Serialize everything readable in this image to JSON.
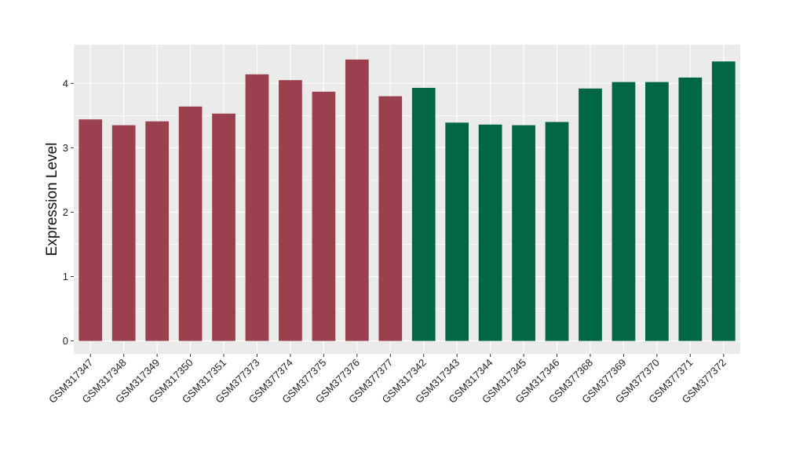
{
  "chart_data": {
    "type": "bar",
    "title": "",
    "xlabel": "",
    "ylabel": "Expression Level",
    "ylim": [
      -0.2,
      4.6
    ],
    "yticks": [
      0,
      1,
      2,
      3,
      4
    ],
    "grid": true,
    "legend": "none",
    "categories": [
      "GSM317347",
      "GSM317348",
      "GSM317349",
      "GSM317350",
      "GSM317351",
      "GSM377373",
      "GSM377374",
      "GSM377375",
      "GSM377376",
      "GSM377377",
      "GSM317342",
      "GSM317343",
      "GSM317344",
      "GSM317345",
      "GSM317346",
      "GSM377368",
      "GSM377369",
      "GSM377370",
      "GSM377371",
      "GSM377372"
    ],
    "values": [
      3.44,
      3.35,
      3.41,
      3.64,
      3.53,
      4.14,
      4.05,
      3.87,
      4.37,
      3.8,
      3.93,
      3.39,
      3.36,
      3.35,
      3.4,
      3.92,
      4.02,
      4.02,
      4.09,
      4.34
    ],
    "group_colors": [
      "#9b404d",
      "#006643"
    ],
    "group_sizes": [
      10,
      10
    ]
  }
}
